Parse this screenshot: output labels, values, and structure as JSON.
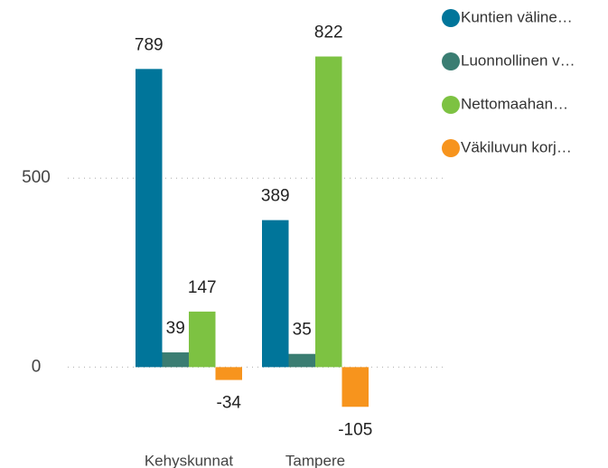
{
  "chart_data": {
    "type": "bar",
    "categories": [
      "Kehyskunnat",
      "Tampere"
    ],
    "series": [
      {
        "name": "Kuntien väline…",
        "color": "#00759a",
        "values": [
          789,
          389
        ]
      },
      {
        "name": "Luonnollinen v…",
        "color": "#3a7d72",
        "values": [
          39,
          35
        ]
      },
      {
        "name": "Nettomaahan…",
        "color": "#7dc242",
        "values": [
          147,
          822
        ]
      },
      {
        "name": "Väkiluvun korj…",
        "color": "#f7941d",
        "values": [
          -34,
          -105
        ]
      }
    ],
    "ylim": [
      -200,
      950
    ],
    "yticks": [
      0,
      500
    ],
    "grid": true,
    "legend": "right"
  }
}
